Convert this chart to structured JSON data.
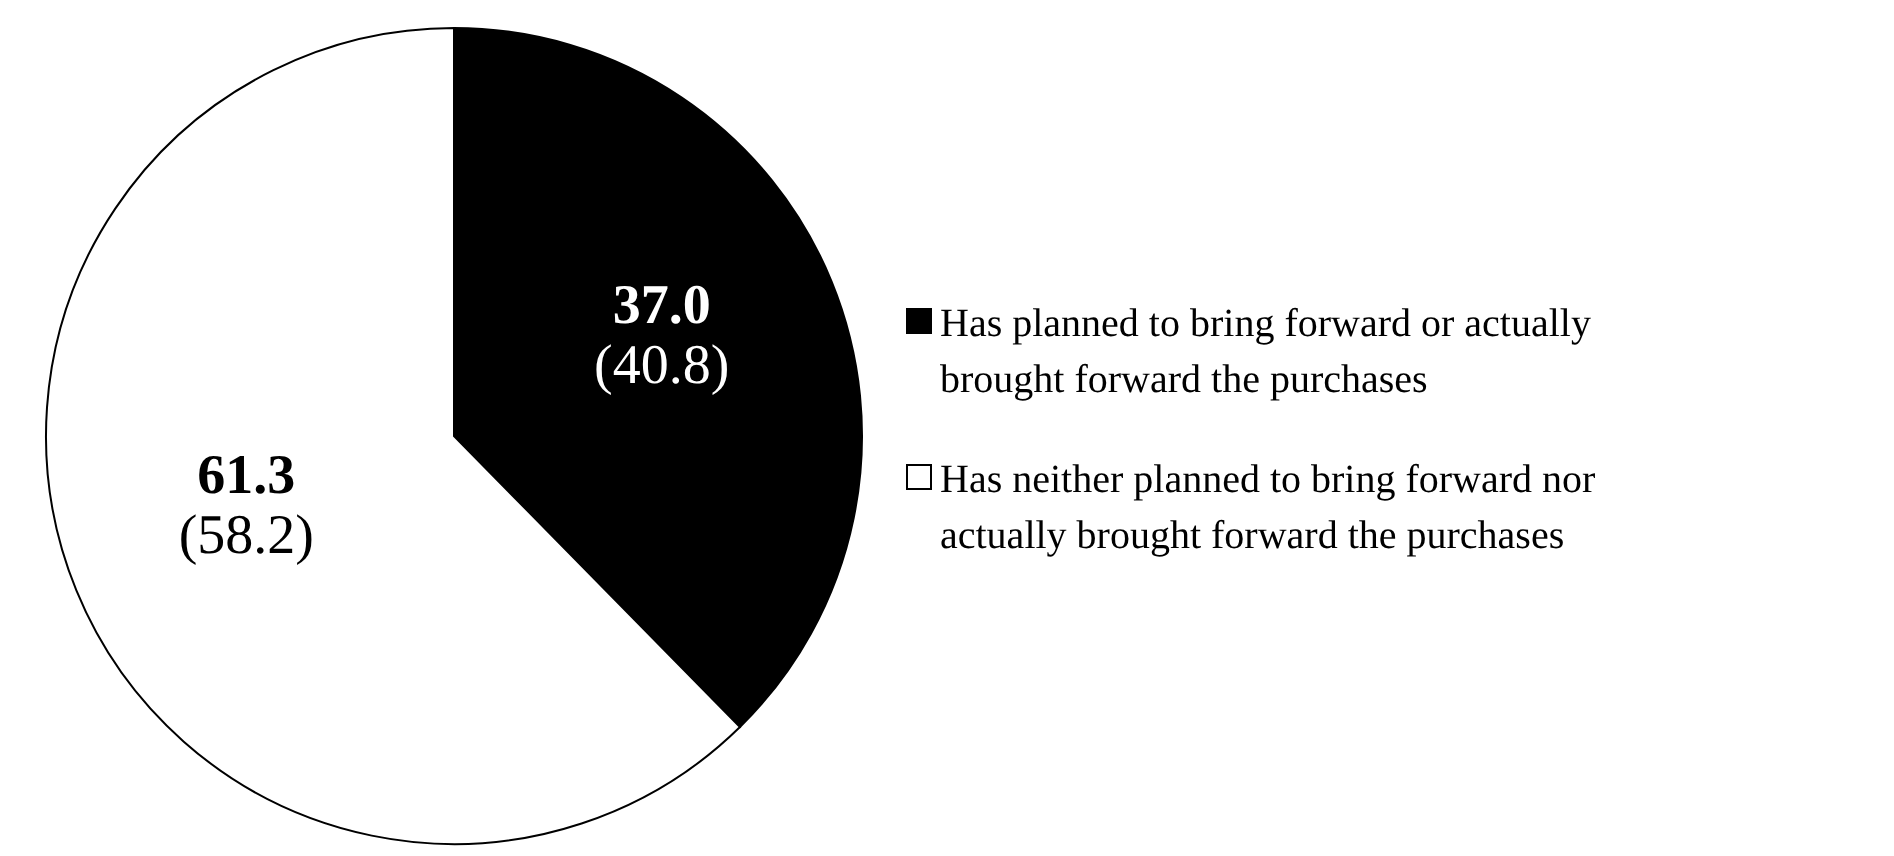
{
  "chart_data": {
    "type": "pie",
    "categories": [
      "Has planned to bring forward or actually brought forward the purchases",
      "Has neither planned to bring forward nor actually brought forward the purchases"
    ],
    "values": [
      37.0,
      61.3
    ],
    "colors": [
      "#000000",
      "#ffffff"
    ],
    "value_labels": [
      "37.0\n(40.8)",
      "61.3\n(58.2)"
    ],
    "legend": "right"
  }
}
